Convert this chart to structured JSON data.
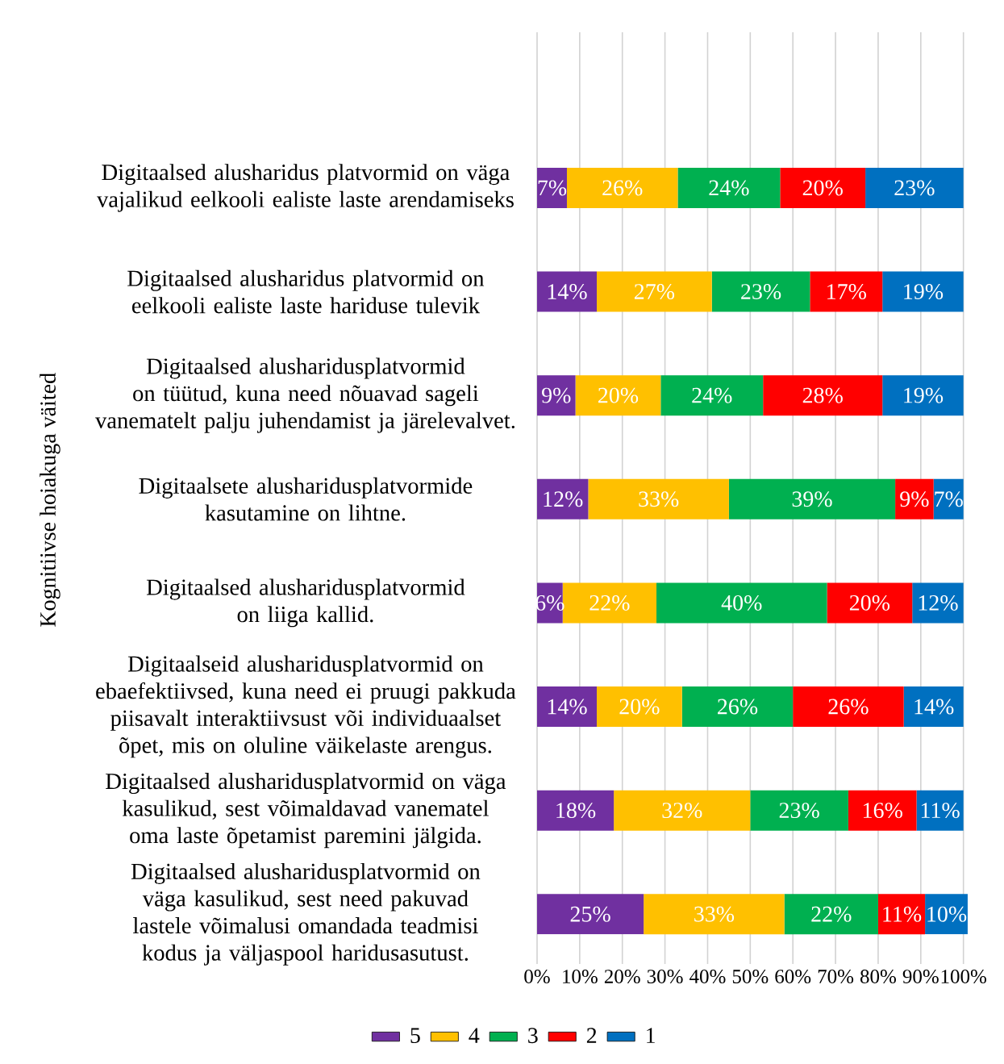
{
  "chart_data": {
    "type": "bar",
    "orientation": "horizontal",
    "stacked": true,
    "ylabel": "Kognitiivse hoiakuga väited",
    "categories": [
      "Digitaalsed alusharidus platvormid on väga vajalikud eelkooli ealiste laste arendamiseks",
      "Digitaalsed alusharidus platvormid on eelkooli ealiste laste hariduse tulevik",
      "Digitaalsed alusharidusplatvormid on tüütud, kuna need nõuavad sageli vanematelt palju juhendamist ja järelevalvet.",
      "Digitaalsete alusharidusplatvormide kasutamine on lihtne.",
      "Digitaalsed alusharidusplatvormid on liiga kallid.",
      "Digitaalseid alusharidusplatvormid on ebaefektiivsed, kuna need ei pruugi pakkuda piisavalt interaktiivsust või individuaalset õpet, mis on oluline väikelaste arengus.",
      "Digitaalsed alusharidusplatvormid on väga kasulikud, sest võimaldavad vanematel oma laste õpetamist paremini jälgida.",
      "Digitaalsed alusharidusplatvormid on väga kasulikud, sest need pakuvad lastele võimalusi omandada teadmisi kodus ja väljaspool haridusasutust."
    ],
    "series": [
      {
        "name": "5",
        "color": "#7030a0",
        "values": [
          7,
          14,
          9,
          12,
          6,
          14,
          18,
          25
        ],
        "value_labels": [
          "7%",
          "14%",
          "9%",
          "12%",
          "6%",
          "14%",
          "18%",
          "25%"
        ]
      },
      {
        "name": "4",
        "color": "#ffc000",
        "values": [
          26,
          27,
          20,
          33,
          22,
          20,
          32,
          33
        ],
        "value_labels": [
          "26%",
          "27%",
          "20%",
          "33%",
          "22%",
          "20%",
          "32%",
          "33%"
        ]
      },
      {
        "name": "3",
        "color": "#00b050",
        "values": [
          24,
          23,
          24,
          39,
          40,
          26,
          23,
          22
        ],
        "value_labels": [
          "24%",
          "23%",
          "24%",
          "39%",
          "40%",
          "26%",
          "23%",
          "22%"
        ]
      },
      {
        "name": "2",
        "color": "#ff0000",
        "values": [
          20,
          17,
          28,
          9,
          20,
          26,
          16,
          11
        ],
        "value_labels": [
          "20%",
          "17%",
          "28%",
          "9%",
          "20%",
          "26%",
          "16%",
          "11%"
        ]
      },
      {
        "name": "1",
        "color": "#0070c0",
        "values": [
          23,
          19,
          19,
          7,
          12,
          14,
          11,
          10
        ],
        "value_labels": [
          "23%",
          "19%",
          "19%",
          "7%",
          "12%",
          "14%",
          "11%",
          "10%"
        ]
      }
    ],
    "xlim": [
      0,
      101
    ],
    "xticks": [
      {
        "value": 0,
        "label": "0%"
      },
      {
        "value": 10,
        "label": "10%"
      },
      {
        "value": 20,
        "label": "20%"
      },
      {
        "value": 30,
        "label": "30%"
      },
      {
        "value": 40,
        "label": "40%"
      },
      {
        "value": 50,
        "label": "50%"
      },
      {
        "value": 60,
        "label": "60%"
      },
      {
        "value": 70,
        "label": "70%"
      },
      {
        "value": 80,
        "label": "80%"
      },
      {
        "value": 90,
        "label": "90%"
      },
      {
        "value": 100,
        "label": "100%"
      }
    ],
    "grid": "x",
    "legend": "bottom"
  }
}
